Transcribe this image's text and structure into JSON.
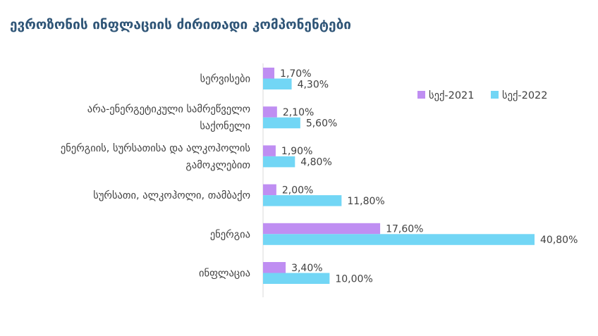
{
  "chart_data": {
    "type": "bar",
    "orientation": "horizontal",
    "title": "ევროზონის ინფლაციის ძირითადი კომპონენტები",
    "categories": [
      [
        "სერვისები"
      ],
      [
        "არა-ენერგეტიკული სამრეწველო",
        "საქონელი"
      ],
      [
        "ენერგიის, სურსათისა და ალკოჰოლის",
        "გამოკლებით"
      ],
      [
        "სურსათი, ალკოჰოლი, თამბაქო"
      ],
      [
        "ენერგია"
      ],
      [
        "ინფლაცია"
      ]
    ],
    "series": [
      {
        "name": "სექ-2021",
        "color": "#bf8ef2",
        "values": [
          1.7,
          2.1,
          1.9,
          2.0,
          17.6,
          3.4
        ],
        "labels": [
          "1,70%",
          "2,10%",
          "1,90%",
          "2,00%",
          "17,60%",
          "3,40%"
        ]
      },
      {
        "name": "სექ-2022",
        "color": "#72d6f5",
        "values": [
          4.3,
          5.6,
          4.8,
          11.8,
          40.8,
          10.0
        ],
        "labels": [
          "4,30%",
          "5,60%",
          "4,80%",
          "11,80%",
          "40,80%",
          "10,00%"
        ]
      }
    ],
    "xlim": [
      0,
      40.8
    ],
    "grid": false,
    "legend_position": "top-right"
  }
}
